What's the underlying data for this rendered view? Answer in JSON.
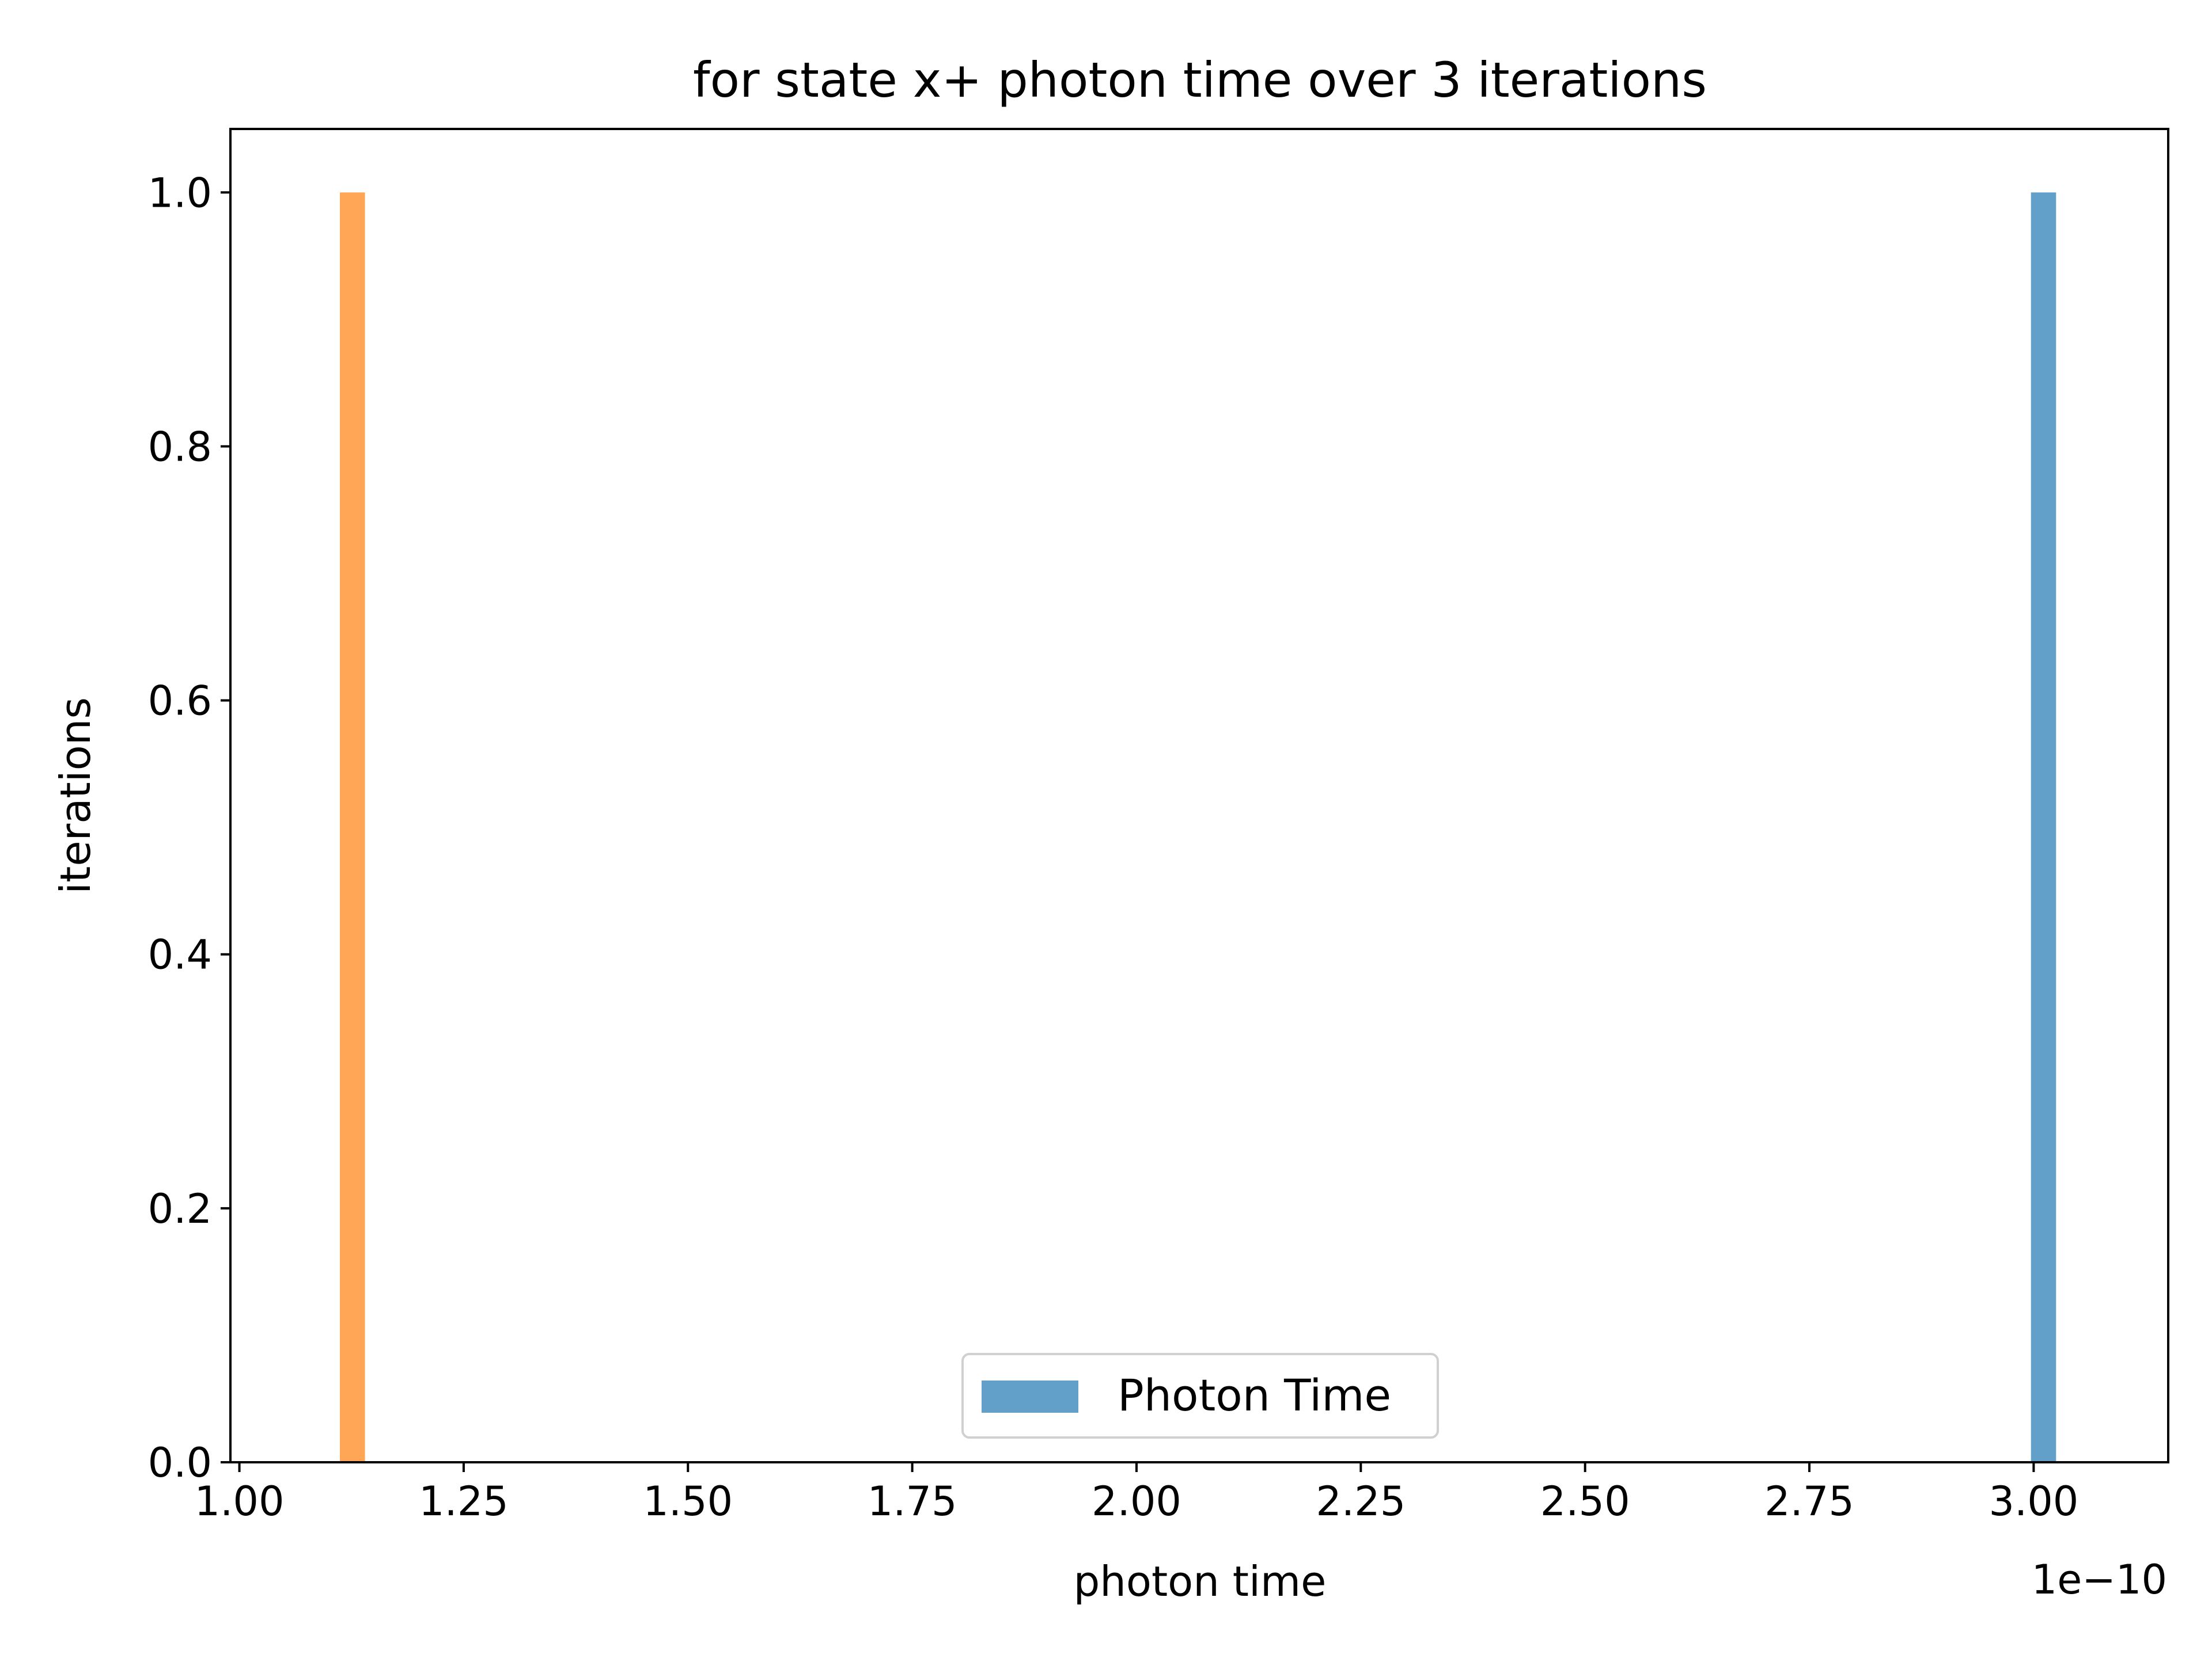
{
  "chart_data": {
    "type": "bar",
    "title": "for state x+ photon time over 3 iterations",
    "xlabel": "photon time",
    "ylabel": "iterations",
    "x_offset_label": "1e−10",
    "xlim": [
      0.99,
      3.15
    ],
    "ylim": [
      0,
      1.05
    ],
    "x_scale_exponent": -10,
    "xticks": [
      1.0,
      1.25,
      1.5,
      1.75,
      2.0,
      2.25,
      2.5,
      2.75,
      3.0
    ],
    "xtick_labels": [
      "1.00",
      "1.25",
      "1.50",
      "1.75",
      "2.00",
      "2.25",
      "2.50",
      "2.75",
      "3.00"
    ],
    "yticks": [
      0.0,
      0.2,
      0.4,
      0.6,
      0.8,
      1.0
    ],
    "ytick_labels": [
      "0.0",
      "0.2",
      "0.4",
      "0.6",
      "0.8",
      "1.0"
    ],
    "grid": false,
    "legend_position": "lower-center",
    "series": [
      {
        "name": "Photon Time",
        "color": "#1f77b4",
        "opacity": 0.7,
        "bars": [
          {
            "x_start": 2.997,
            "x_end": 3.025,
            "value": 1.0
          }
        ]
      },
      {
        "color": "#ff7f0e",
        "opacity": 0.7,
        "bars": [
          {
            "x_start": 1.112,
            "x_end": 1.14,
            "value": 1.0
          }
        ]
      }
    ],
    "legend": [
      {
        "label": "Photon Time",
        "color": "#1f77b4"
      }
    ]
  }
}
